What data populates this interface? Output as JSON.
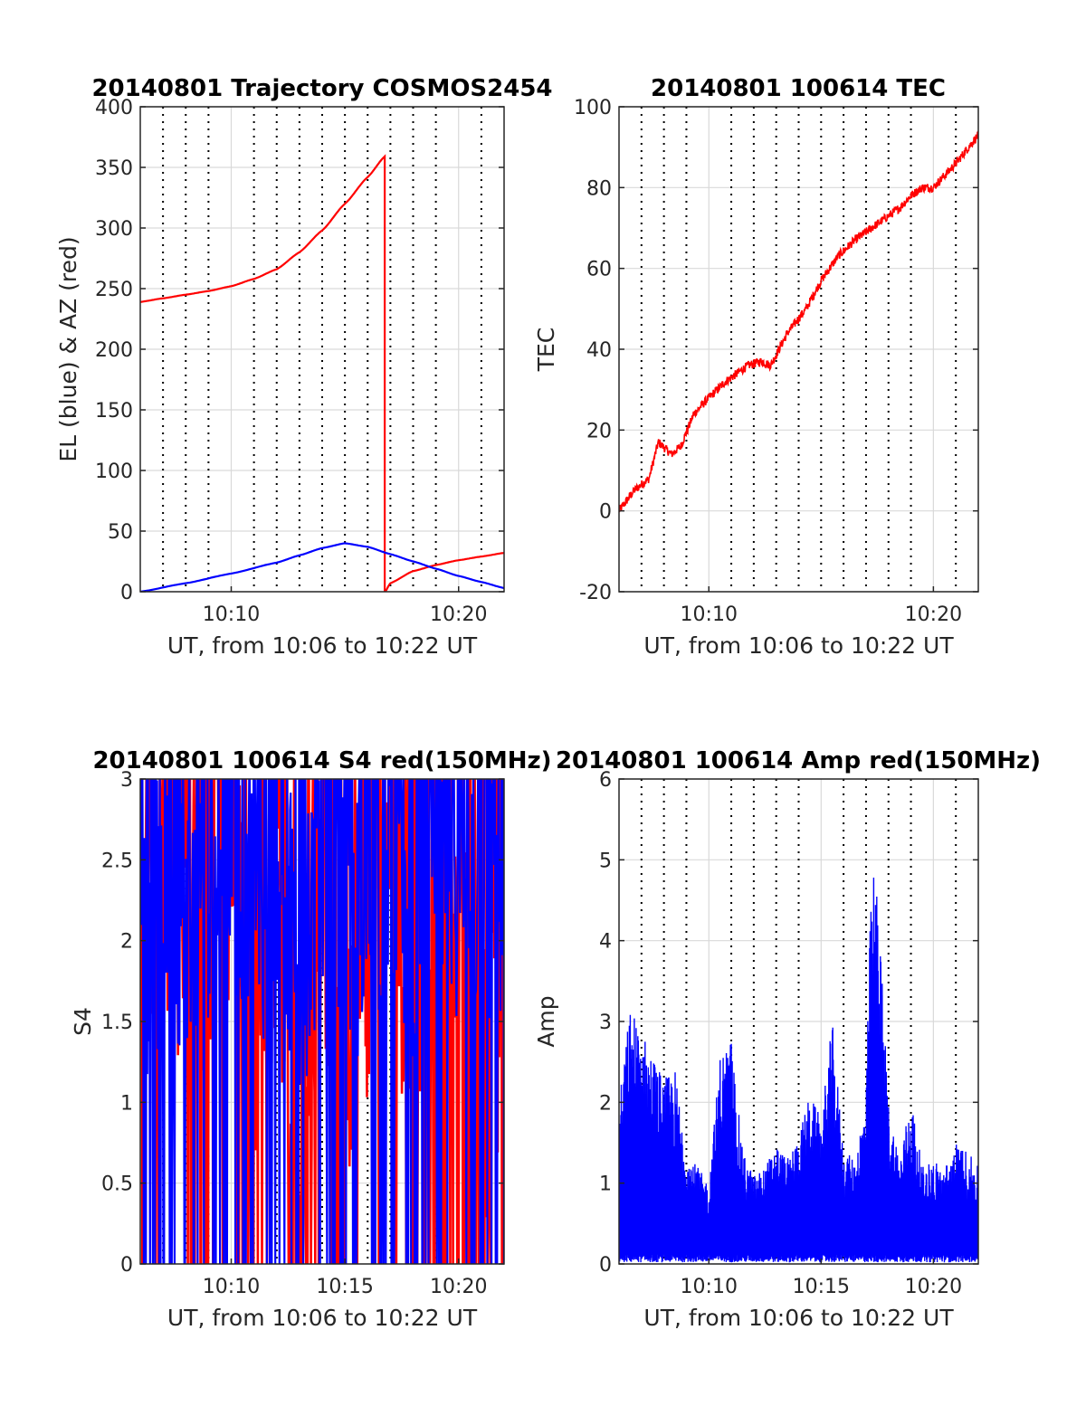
{
  "colors": {
    "red": "#ff0000",
    "blue": "#0000ff",
    "axis": "#262626",
    "grid": "#d9d9d9",
    "dotted": "#000000"
  },
  "chart_data": [
    {
      "type": "line",
      "title": "20140801 Trajectory COSMOS2454",
      "xlabel": "UT, from 10:06 to 10:22 UT",
      "ylabel": "EL (blue) & AZ (red)",
      "xlim": [
        "10:06",
        "10:22"
      ],
      "ylim": [
        0,
        400
      ],
      "xticks": [
        "10:10",
        "10:20"
      ],
      "yticks": [
        0,
        50,
        100,
        150,
        200,
        250,
        300,
        350,
        400
      ],
      "grid": true,
      "series": [
        {
          "color": "#ff0000",
          "style": "smooth",
          "x": [
            "10:06",
            "10:07",
            "10:08",
            "10:09",
            "10:10",
            "10:11",
            "10:12",
            "10:13",
            "10:14",
            "10:15",
            "10:16",
            "10:16:45",
            "10:16:46",
            "10:17",
            "10:18",
            "10:19",
            "10:20",
            "10:21",
            "10:22"
          ],
          "values": [
            239,
            242,
            245,
            248,
            252,
            258,
            266,
            280,
            298,
            320,
            342,
            359,
            0,
            7,
            17,
            22,
            26,
            29,
            32
          ]
        },
        {
          "color": "#0000ff",
          "style": "smooth",
          "x": [
            "10:06",
            "10:08",
            "10:10",
            "10:12",
            "10:13",
            "10:14",
            "10:15",
            "10:16",
            "10:17",
            "10:18",
            "10:19",
            "10:20",
            "10:21",
            "10:22"
          ],
          "values": [
            0,
            7,
            15,
            24,
            30,
            36,
            40,
            37,
            31,
            25,
            19,
            13,
            8,
            3
          ]
        }
      ]
    },
    {
      "type": "line",
      "title": "20140801 100614 TEC",
      "xlabel": "UT, from 10:06 to 10:22 UT",
      "ylabel": "TEC",
      "xlim": [
        "10:06",
        "10:22"
      ],
      "ylim": [
        -20,
        100
      ],
      "xticks": [
        "10:10",
        "10:20"
      ],
      "yticks": [
        -20,
        0,
        20,
        40,
        60,
        80,
        100
      ],
      "grid": true,
      "series": [
        {
          "color": "#ff0000",
          "style": "jagged",
          "x": [
            "10:06",
            "10:06:40",
            "10:07:20",
            "10:07:45",
            "10:08:20",
            "10:08:45",
            "10:09:20",
            "10:10",
            "10:10:45",
            "10:11:45",
            "10:12:20",
            "10:12:45",
            "10:13:30",
            "10:14:20",
            "10:15",
            "10:15:45",
            "10:16:30",
            "10:17",
            "10:17:30",
            "10:18",
            "10:18:30",
            "10:19",
            "10:19:30",
            "10:20",
            "10:21",
            "10:22"
          ],
          "values": [
            0,
            5,
            8,
            17,
            14,
            16,
            24,
            28,
            32,
            36,
            37,
            36,
            44,
            50,
            57,
            63,
            67,
            69,
            71,
            73,
            75,
            78,
            80,
            80,
            86,
            93
          ]
        }
      ]
    },
    {
      "type": "line",
      "title": "20140801 100614 S4 red(150MHz)",
      "xlabel": "UT, from 10:06 to 10:22 UT",
      "ylabel": "S4",
      "xlim": [
        "10:06",
        "10:22"
      ],
      "ylim": [
        0,
        3
      ],
      "xticks": [
        "10:10",
        "10:15",
        "10:20"
      ],
      "yticks": [
        0,
        0.5,
        1,
        1.5,
        2,
        2.5,
        3
      ],
      "grid": true,
      "series": [
        {
          "color": "#ff0000",
          "style": "noise",
          "x": [
            "10:06",
            "10:07",
            "10:08",
            "10:09",
            "10:10",
            "10:11",
            "10:12",
            "10:13",
            "10:14",
            "10:15",
            "10:16",
            "10:17",
            "10:18",
            "10:19",
            "10:20",
            "10:21",
            "10:22"
          ],
          "values": [
            2.3,
            2.6,
            1.9,
            2.2,
            2.5,
            1.6,
            2.4,
            1.0,
            2.2,
            1.5,
            2.0,
            2.6,
            1.5,
            2.3,
            1.8,
            1.2,
            1.6
          ]
        },
        {
          "color": "#0000ff",
          "style": "noise",
          "x": [
            "10:06",
            "10:07",
            "10:08",
            "10:09",
            "10:10",
            "10:11",
            "10:12",
            "10:13",
            "10:14",
            "10:15",
            "10:16",
            "10:17",
            "10:18",
            "10:19",
            "10:20",
            "10:21",
            "10:22"
          ],
          "values": [
            2.0,
            2.3,
            1.8,
            2.5,
            2.7,
            2.2,
            2.6,
            2.0,
            2.5,
            2.2,
            2.3,
            2.7,
            2.2,
            2.8,
            2.5,
            2.3,
            2.4
          ]
        }
      ]
    },
    {
      "type": "line",
      "title": "20140801 100614 Amp red(150MHz)",
      "xlabel": "UT, from 10:06 to 10:22 UT",
      "ylabel": "Amp",
      "xlim": [
        "10:06",
        "10:22"
      ],
      "ylim": [
        0,
        6
      ],
      "xticks": [
        "10:10",
        "10:15",
        "10:20"
      ],
      "yticks": [
        0,
        1,
        2,
        3,
        4,
        5,
        6
      ],
      "grid": true,
      "series": [
        {
          "color": "#0000ff",
          "style": "spiky",
          "x": [
            "10:06",
            "10:06:30",
            "10:07",
            "10:07:30",
            "10:08",
            "10:08:30",
            "10:09",
            "10:09:30",
            "10:10",
            "10:10:30",
            "10:11",
            "10:11:30",
            "10:12",
            "10:12:30",
            "10:13",
            "10:13:30",
            "10:14",
            "10:14:30",
            "10:15",
            "10:15:30",
            "10:16",
            "10:16:30",
            "10:17",
            "10:17:15",
            "10:17:30",
            "10:18",
            "10:18:30",
            "10:19",
            "10:19:30",
            "10:20",
            "10:20:30",
            "10:21",
            "10:21:30",
            "10:22"
          ],
          "values": [
            2.0,
            3.2,
            2.9,
            2.6,
            2.3,
            2.4,
            1.4,
            1.2,
            1.0,
            2.6,
            2.8,
            1.4,
            1.1,
            1.2,
            1.5,
            1.3,
            1.6,
            2.1,
            1.8,
            3.0,
            1.4,
            1.3,
            2.1,
            5.0,
            4.7,
            2.0,
            1.3,
            2.1,
            1.2,
            1.3,
            1.2,
            1.5,
            1.4,
            1.2
          ]
        }
      ]
    }
  ]
}
